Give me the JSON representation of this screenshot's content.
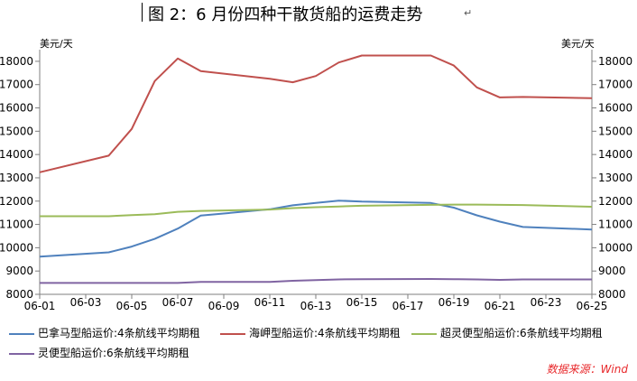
{
  "title": "图 2：6 月份四种干散货船的运费走势",
  "title_mark": "↵",
  "unit_left": "美元/天",
  "unit_right": "美元/天",
  "source": "数据来源：Wind",
  "colors": {
    "panamax": "#4f81bd",
    "capesize": "#c0504d",
    "supramax": "#9bbb59",
    "handysize": "#8064a2",
    "axis": "#7f7f7f"
  },
  "chart_data": {
    "type": "line",
    "title": "图 2：6 月份四种干散货船的运费走势",
    "xlabel": "",
    "ylabel": "美元/天",
    "ylim": [
      8000,
      18500
    ],
    "yticks": [
      8000,
      9000,
      10000,
      11000,
      12000,
      13000,
      14000,
      15000,
      16000,
      17000,
      18000
    ],
    "grid": false,
    "legend_position": "bottom",
    "x_tick_labels": [
      "06-01",
      "06-03",
      "06-05",
      "06-07",
      "06-09",
      "06-11",
      "06-13",
      "06-15",
      "06-17",
      "06-19",
      "06-21",
      "06-23",
      "06-25"
    ],
    "x": [
      "06-01",
      "06-04",
      "06-05",
      "06-06",
      "06-07",
      "06-08",
      "06-11",
      "06-12",
      "06-13",
      "06-14",
      "06-15",
      "06-18",
      "06-19",
      "06-20",
      "06-21",
      "06-22",
      "06-25"
    ],
    "series": [
      {
        "name": "巴拿马型船运价:4条航线平均期租",
        "color_key": "panamax",
        "values": [
          9620,
          9800,
          10050,
          10380,
          10820,
          11380,
          11650,
          11820,
          11920,
          12020,
          11980,
          11920,
          11720,
          11390,
          11120,
          10890,
          10780
        ]
      },
      {
        "name": "海岬型船运价:4条航线平均期租",
        "color_key": "capesize",
        "values": [
          13240,
          13950,
          15100,
          17150,
          18120,
          17580,
          17250,
          17100,
          17370,
          17950,
          18250,
          18250,
          17820,
          16880,
          16450,
          16470,
          16420
        ]
      },
      {
        "name": "超灵便型船运价:6条航线平均期租",
        "color_key": "supramax",
        "values": [
          11350,
          11350,
          11400,
          11440,
          11540,
          11580,
          11640,
          11700,
          11740,
          11770,
          11800,
          11840,
          11850,
          11850,
          11840,
          11830,
          11760
        ]
      },
      {
        "name": "灵便型船运价:6条航线平均期租",
        "color_key": "handysize",
        "values": [
          8490,
          8490,
          8490,
          8490,
          8490,
          8530,
          8530,
          8580,
          8610,
          8640,
          8650,
          8660,
          8650,
          8640,
          8620,
          8640,
          8640
        ]
      }
    ]
  }
}
